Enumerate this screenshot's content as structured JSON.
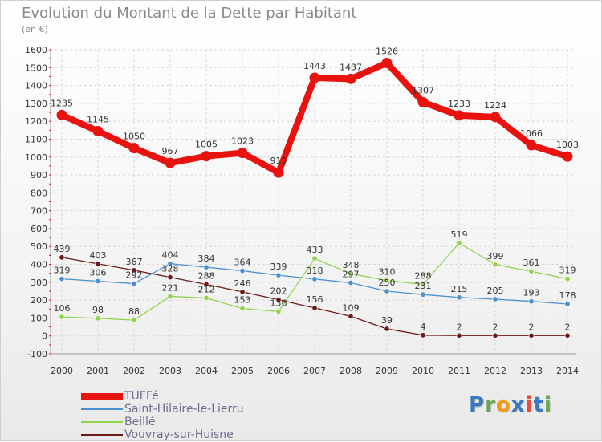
{
  "header": {
    "title": "Evolution du Montant de la Dette par Habitant",
    "subtitle": "(en €)"
  },
  "logo": {
    "letters": [
      "P",
      "r",
      "o",
      "x",
      "i",
      "t",
      "i"
    ],
    "colors": [
      "#3a78c2",
      "#6aa84f",
      "#f39c12",
      "#3a78c2",
      "#e74c3c",
      "#3a78c2",
      "#6aa84f"
    ]
  },
  "chart_data": {
    "type": "line",
    "title": "Evolution du Montant de la Dette par Habitant",
    "subtitle": "(en €)",
    "xlabel": "",
    "ylabel": "",
    "ylim": [
      -100,
      1600
    ],
    "yticks": [
      -100,
      0,
      100,
      200,
      300,
      400,
      500,
      600,
      700,
      800,
      900,
      1000,
      1100,
      1200,
      1300,
      1400,
      1500,
      1600
    ],
    "grid": true,
    "legend": "bottom-left",
    "categories": [
      "2000",
      "2001",
      "2002",
      "2003",
      "2004",
      "2005",
      "2006",
      "2007",
      "2008",
      "2009",
      "2010",
      "2011",
      "2012",
      "2013",
      "2014"
    ],
    "series": [
      {
        "name": "TUFFé",
        "color": "#e8120e",
        "values": [
          1235,
          1145,
          1050,
          967,
          1005,
          1023,
          913,
          1443,
          1437,
          1526,
          1307,
          1233,
          1224,
          1066,
          1003
        ],
        "labels": [
          "1235",
          "1145",
          "1050",
          "967",
          "1005",
          "1023",
          "913",
          "1443",
          "1437",
          "1526",
          "1307",
          "1233",
          "1224",
          "1066",
          "1003"
        ]
      },
      {
        "name": "Saint-Hilaire-le-Lierru",
        "color": "#4a8fd0",
        "values": [
          319,
          306,
          292,
          404,
          384,
          364,
          339,
          318,
          297,
          250,
          231,
          215,
          205,
          193,
          178
        ],
        "labels": [
          "319",
          "306",
          "292",
          "404",
          "384",
          "364",
          "339",
          "318",
          "297",
          "250",
          "231",
          "215",
          "205",
          "193",
          "178"
        ]
      },
      {
        "name": "Beillé",
        "color": "#8fd44a",
        "values": [
          106,
          98,
          88,
          221,
          212,
          153,
          136,
          433,
          348,
          310,
          288,
          519,
          399,
          361,
          319
        ],
        "labels": [
          "106",
          "98",
          "88",
          "221",
          "212",
          "153",
          "136",
          "433",
          "348",
          "310",
          "288",
          "519",
          "399",
          "361",
          "319"
        ]
      },
      {
        "name": "Vouvray-sur-Huisne",
        "color": "#6b1a1a",
        "values": [
          439,
          403,
          367,
          328,
          288,
          246,
          202,
          156,
          109,
          39,
          4,
          2,
          2,
          2,
          2
        ],
        "labels": [
          "439",
          "403",
          "367",
          "328",
          "288",
          "246",
          "202",
          "156",
          "109",
          "39",
          "4",
          "2",
          "2",
          "2",
          "2"
        ]
      }
    ]
  }
}
